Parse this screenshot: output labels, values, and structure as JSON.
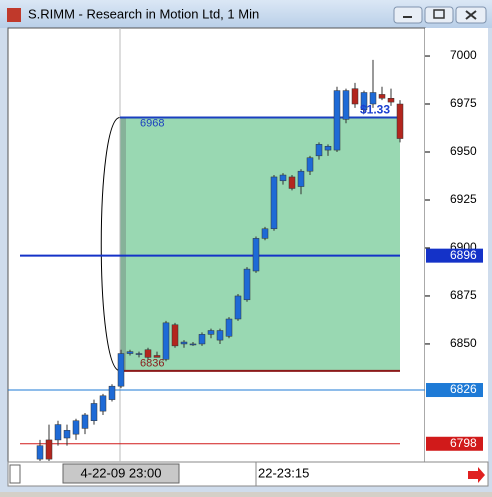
{
  "chart_data": {
    "type": "candlestick",
    "title": "S.RIMM - Research in Motion Ltd, 1 Min",
    "categories": [
      null,
      null,
      null,
      null,
      null,
      null,
      null,
      null,
      null,
      "4-22-09 23:00",
      null,
      null,
      null,
      null,
      null,
      null,
      null,
      null,
      null,
      null,
      null,
      null,
      null,
      null,
      "22-23:15",
      null,
      null,
      null,
      null,
      null,
      null,
      null,
      null,
      null,
      null,
      null,
      null,
      null,
      null,
      null,
      null
    ],
    "open": [
      6790,
      6800,
      6800,
      6801,
      6803,
      6806,
      6810,
      6815,
      6821,
      6828,
      6845,
      6845,
      6847,
      6844,
      6842,
      6860,
      6850,
      6850,
      6850,
      6855,
      6852,
      6854,
      6863,
      6873,
      6888,
      6905,
      6910,
      6935,
      6937,
      6932,
      6940,
      6948,
      6951,
      6951,
      6967,
      6983,
      6972,
      6975,
      6980,
      6978,
      6975
    ],
    "high": [
      6800,
      6808,
      6810,
      6808,
      6811,
      6814,
      6821,
      6824,
      6829,
      6847,
      6847,
      6846,
      6848,
      6846,
      6862,
      6861,
      6852,
      6851,
      6856,
      6858,
      6858,
      6864,
      6876,
      6890,
      6906,
      6911,
      6938,
      6939,
      6938,
      6941,
      6948,
      6955,
      6954,
      6984,
      6983,
      6986,
      6982,
      6998,
      6984,
      6983,
      6977
    ],
    "low": [
      6789,
      6789,
      6797,
      6797,
      6800,
      6803,
      6808,
      6813,
      6820,
      6827,
      6844,
      6843,
      6842,
      6843,
      6841,
      6848,
      6848,
      6849,
      6849,
      6853,
      6850,
      6853,
      6862,
      6872,
      6887,
      6904,
      6909,
      6933,
      6930,
      6928,
      6938,
      6946,
      6948,
      6950,
      6965,
      6973,
      6970,
      6973,
      6977,
      6974,
      6955
    ],
    "close": [
      6797,
      6790,
      6808,
      6805,
      6810,
      6813,
      6819,
      6823,
      6828,
      6845,
      6846,
      6845,
      6843,
      6843,
      6861,
      6849,
      6851,
      6850,
      6855,
      6857,
      6857,
      6863,
      6875,
      6889,
      6905,
      6910,
      6937,
      6938,
      6931,
      6940,
      6947,
      6954,
      6953,
      6982,
      6982,
      6975,
      6981,
      6981,
      6978,
      6976,
      6957
    ],
    "up_color": "#1e6ad6",
    "down_color": "#b3261e",
    "ylim": [
      6788.5,
      7014.6
    ],
    "yticks": [
      6850,
      6875,
      6900,
      6925,
      6950,
      6975,
      7000
    ],
    "levels": [
      {
        "value": 6968,
        "label": "6968",
        "color": "#1a3fbf"
      },
      {
        "value": 6836,
        "label": "6836",
        "color": "#8b1a1a"
      }
    ],
    "price_markers": [
      {
        "value": 6896,
        "label": "6896",
        "color": "#1432c8"
      },
      {
        "value": 6826,
        "label": "6826",
        "color": "#1e7ad6"
      },
      {
        "value": 6798,
        "label": "6798",
        "color": "#d11a1a"
      }
    ],
    "annotation": "$1.33"
  }
}
